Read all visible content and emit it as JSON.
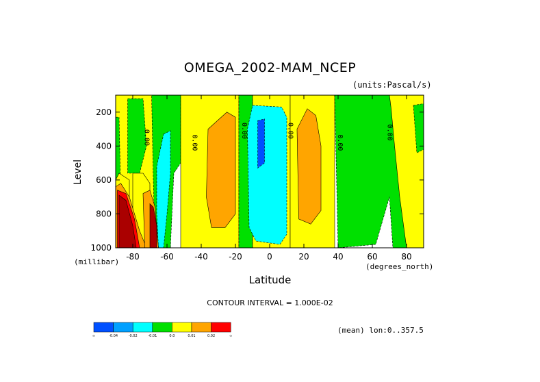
{
  "chart_data": {
    "type": "heatmap",
    "title": "OMEGA_2002-MAM_NCEP",
    "units_label": "(units:Pascal/s)",
    "xlabel": "Latitude",
    "ylabel": "Level",
    "x_unit_label": "(degrees_north)",
    "y_unit_label": "(millibar)",
    "xlim": [
      -90,
      90
    ],
    "ylim": [
      1000,
      100
    ],
    "x_ticks": [
      -80,
      -60,
      -40,
      -20,
      0,
      20,
      40,
      60,
      80
    ],
    "y_ticks": [
      200,
      400,
      600,
      800,
      1000
    ],
    "contour_interval_text": "CONTOUR INTERVAL = 1.000E-02",
    "mean_note": "(mean) lon:0..357.5",
    "colorbar": {
      "colors": [
        "#0050ff",
        "#00a0ff",
        "#00ffff",
        "#00e000",
        "#ffff00",
        "#ffa500",
        "#ff0000"
      ],
      "labels": [
        "-0.04",
        "-0.02",
        "-0.01",
        "0.0",
        "0.01",
        "0.02"
      ],
      "end_label": "∞"
    },
    "contour_labels": [
      {
        "text": "0.00",
        "lat": -73,
        "level": 350
      },
      {
        "text": "0.00",
        "lat": -45,
        "level": 380
      },
      {
        "text": "0.00",
        "lat": -16,
        "level": 310
      },
      {
        "text": "0.00",
        "lat": 11,
        "level": 310
      },
      {
        "text": "0.00",
        "lat": 40,
        "level": 380
      },
      {
        "text": "0.00",
        "lat": 69,
        "level": 320
      }
    ],
    "regions": [
      {
        "value_class": "0.0",
        "polygon": [
          [
            -90,
            100
          ],
          [
            -90,
            1000
          ],
          [
            -58,
            1000
          ],
          [
            -58,
            100
          ]
        ]
      },
      {
        "value_class": "-0.01",
        "polygon": [
          [
            -90,
            230
          ],
          [
            -88,
            230
          ],
          [
            -87,
            700
          ],
          [
            -90,
            700
          ]
        ]
      },
      {
        "value_class": "-0.01",
        "polygon": [
          [
            -83,
            120
          ],
          [
            -74,
            120
          ],
          [
            -72,
            400
          ],
          [
            -76,
            560
          ],
          [
            -83,
            560
          ]
        ]
      },
      {
        "value_class": "-0.01",
        "polygon": [
          [
            -69,
            100
          ],
          [
            -52,
            100
          ],
          [
            -52,
            500
          ],
          [
            -56,
            560
          ],
          [
            -58,
            1000
          ],
          [
            -67,
            1000
          ],
          [
            -68,
            600
          ]
        ]
      },
      {
        "value_class": "0.0",
        "polygon": [
          [
            -90,
            600
          ],
          [
            -88,
            560
          ],
          [
            -82,
            600
          ],
          [
            -82,
            1000
          ],
          [
            -90,
            1000
          ]
        ]
      },
      {
        "value_class": "0.0",
        "polygon": [
          [
            -80,
            560
          ],
          [
            -74,
            560
          ],
          [
            -70,
            620
          ],
          [
            -70,
            1000
          ],
          [
            -80,
            1000
          ]
        ]
      },
      {
        "value_class": "-0.02",
        "polygon": [
          [
            -62,
            330
          ],
          [
            -58,
            310
          ],
          [
            -58,
            560
          ],
          [
            -60,
            800
          ],
          [
            -62,
            1000
          ],
          [
            -65,
            1000
          ],
          [
            -66,
            800
          ],
          [
            -66,
            520
          ]
        ]
      },
      {
        "value_class": "0.01",
        "polygon": [
          [
            -90,
            640
          ],
          [
            -87,
            620
          ],
          [
            -82,
            700
          ],
          [
            -76,
            900
          ],
          [
            -72,
            1000
          ],
          [
            -90,
            1000
          ]
        ]
      },
      {
        "value_class": "0.02",
        "polygon": [
          [
            -89,
            660
          ],
          [
            -84,
            680
          ],
          [
            -79,
            830
          ],
          [
            -76,
            1000
          ],
          [
            -89,
            1000
          ]
        ]
      },
      {
        "value_class": "0.03",
        "polygon": [
          [
            -88,
            690
          ],
          [
            -84,
            720
          ],
          [
            -80,
            870
          ],
          [
            -78,
            1000
          ],
          [
            -88,
            1000
          ]
        ]
      },
      {
        "value_class": "0.01",
        "polygon": [
          [
            -74,
            680
          ],
          [
            -70,
            660
          ],
          [
            -67,
            760
          ],
          [
            -65,
            1000
          ],
          [
            -73,
            1000
          ]
        ]
      },
      {
        "value_class": "0.03",
        "polygon": [
          [
            -70,
            740
          ],
          [
            -68,
            760
          ],
          [
            -66,
            870
          ],
          [
            -66,
            1000
          ],
          [
            -70,
            1000
          ]
        ]
      },
      {
        "value_class": "0.0",
        "polygon": [
          [
            -52,
            100
          ],
          [
            -18,
            100
          ],
          [
            -18,
            1000
          ],
          [
            -52,
            1000
          ]
        ]
      },
      {
        "value_class": "0.01",
        "polygon": [
          [
            -36,
            300
          ],
          [
            -25,
            200
          ],
          [
            -20,
            230
          ],
          [
            -20,
            800
          ],
          [
            -26,
            880
          ],
          [
            -34,
            880
          ],
          [
            -37,
            700
          ]
        ]
      },
      {
        "value_class": "-0.01",
        "polygon": [
          [
            -18,
            100
          ],
          [
            -10,
            100
          ],
          [
            -10,
            1000
          ],
          [
            -18,
            1000
          ]
        ]
      },
      {
        "value_class": "0.0",
        "polygon": [
          [
            -10,
            100
          ],
          [
            -10,
            1000
          ],
          [
            12,
            1000
          ],
          [
            12,
            100
          ]
        ]
      },
      {
        "value_class": "-0.02",
        "polygon": [
          [
            -10,
            160
          ],
          [
            7,
            170
          ],
          [
            10,
            230
          ],
          [
            10,
            920
          ],
          [
            6,
            980
          ],
          [
            -8,
            960
          ],
          [
            -12,
            880
          ],
          [
            -13,
            300
          ]
        ]
      },
      {
        "value_class": "-0.04",
        "polygon": [
          [
            -7,
            250
          ],
          [
            -3,
            240
          ],
          [
            -3,
            500
          ],
          [
            -7,
            530
          ]
        ]
      },
      {
        "value_class": "0.0",
        "polygon": [
          [
            12,
            100
          ],
          [
            38,
            100
          ],
          [
            38,
            1000
          ],
          [
            12,
            1000
          ]
        ]
      },
      {
        "value_class": "0.01",
        "polygon": [
          [
            16,
            300
          ],
          [
            22,
            180
          ],
          [
            27,
            220
          ],
          [
            30,
            400
          ],
          [
            30,
            780
          ],
          [
            24,
            860
          ],
          [
            17,
            830
          ]
        ]
      },
      {
        "value_class": "-0.01",
        "polygon": [
          [
            38,
            100
          ],
          [
            90,
            100
          ],
          [
            90,
            1000
          ],
          [
            72,
            1000
          ],
          [
            70,
            700
          ],
          [
            62,
            980
          ],
          [
            40,
            1000
          ]
        ]
      },
      {
        "value_class": "0.0",
        "polygon": [
          [
            70,
            100
          ],
          [
            90,
            100
          ],
          [
            90,
            1000
          ],
          [
            80,
            1000
          ],
          [
            76,
            700
          ],
          [
            73,
            400
          ],
          [
            71,
            180
          ]
        ]
      },
      {
        "value_class": "-0.01",
        "polygon": [
          [
            84,
            160
          ],
          [
            90,
            150
          ],
          [
            90,
            420
          ],
          [
            86,
            440
          ]
        ]
      }
    ]
  }
}
